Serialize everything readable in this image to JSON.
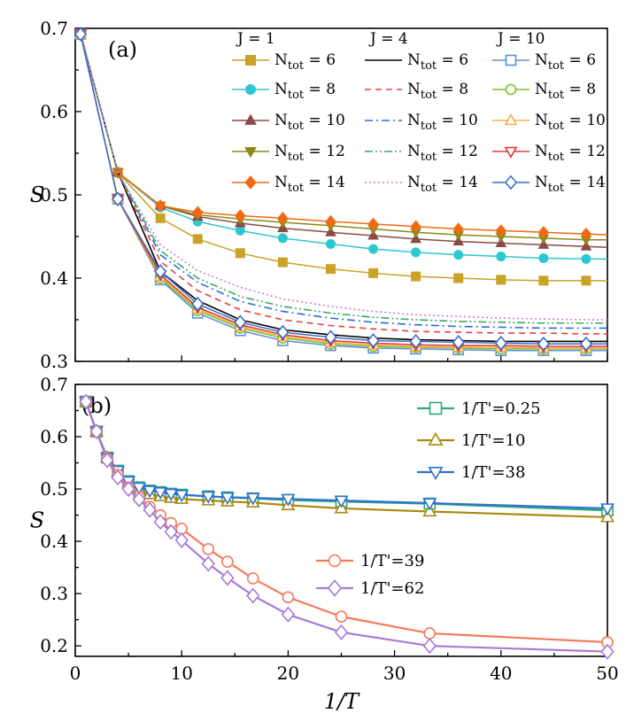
{
  "chart_data": [
    {
      "panel": "(a)",
      "type": "line",
      "x_values": [
        0.5,
        4,
        8,
        11.5,
        15.5,
        19.5,
        24,
        28,
        32,
        36,
        40,
        44,
        48,
        50
      ],
      "xlim": [
        0,
        50
      ],
      "ylim": [
        0.3,
        0.7
      ],
      "yticks": [
        "0.3",
        "0.4",
        "0.5",
        "0.6",
        "0.7"
      ],
      "ylabel": "S",
      "legend_groups": [
        {
          "title": "J = 1",
          "style": "filled-markers",
          "series": [
            {
              "label": "N_tot = 6",
              "color": "#c9a227",
              "marker": "square",
              "values": [
                0.693,
                0.527,
                0.472,
                0.447,
                0.43,
                0.419,
                0.411,
                0.406,
                0.402,
                0.4,
                0.398,
                0.397,
                0.397,
                0.397
              ]
            },
            {
              "label": "N_tot = 8",
              "color": "#2ec7cf",
              "marker": "circle",
              "values": [
                0.693,
                0.527,
                0.485,
                0.468,
                0.457,
                0.448,
                0.441,
                0.435,
                0.431,
                0.428,
                0.426,
                0.424,
                0.423,
                0.423
              ]
            },
            {
              "label": "N_tot = 10",
              "color": "#8b4b45",
              "marker": "triangle-up",
              "values": [
                0.693,
                0.527,
                0.487,
                0.474,
                0.466,
                0.46,
                0.455,
                0.451,
                0.447,
                0.444,
                0.442,
                0.44,
                0.438,
                0.437
              ]
            },
            {
              "label": "N_tot = 12",
              "color": "#8a8a1a",
              "marker": "triangle-down",
              "values": [
                0.693,
                0.527,
                0.487,
                0.476,
                0.471,
                0.467,
                0.463,
                0.459,
                0.455,
                0.452,
                0.45,
                0.448,
                0.446,
                0.446
              ]
            },
            {
              "label": "N_tot = 14",
              "color": "#f06a14",
              "marker": "diamond",
              "values": [
                0.693,
                0.527,
                0.487,
                0.479,
                0.475,
                0.472,
                0.468,
                0.465,
                0.462,
                0.459,
                0.457,
                0.455,
                0.453,
                0.452
              ]
            }
          ]
        },
        {
          "title": "J = 4",
          "style": "lines",
          "series": [
            {
              "label": "N_tot = 6",
              "color": "#000000",
              "dash": "solid",
              "values": [
                0.693,
                0.527,
                0.408,
                0.373,
                0.35,
                0.338,
                0.332,
                0.328,
                0.326,
                0.325,
                0.324,
                0.324,
                0.324,
                0.324
              ]
            },
            {
              "label": "N_tot = 8",
              "color": "#e8413a",
              "dash": "dash",
              "values": [
                0.693,
                0.527,
                0.42,
                0.385,
                0.362,
                0.35,
                0.343,
                0.339,
                0.336,
                0.335,
                0.334,
                0.334,
                0.333,
                0.333
              ]
            },
            {
              "label": "N_tot = 10",
              "color": "#2a6fdb",
              "dash": "dashdot",
              "values": [
                0.693,
                0.527,
                0.428,
                0.395,
                0.372,
                0.36,
                0.352,
                0.347,
                0.344,
                0.342,
                0.341,
                0.34,
                0.34,
                0.34
              ]
            },
            {
              "label": "N_tot = 12",
              "color": "#3aa860",
              "dash": "dashdotdot",
              "values": [
                0.693,
                0.527,
                0.433,
                0.4,
                0.378,
                0.366,
                0.358,
                0.353,
                0.35,
                0.348,
                0.347,
                0.346,
                0.346,
                0.346
              ]
            },
            {
              "label": "N_tot = 14",
              "color": "#c77ad9",
              "dash": "dot",
              "values": [
                0.693,
                0.527,
                0.44,
                0.409,
                0.389,
                0.375,
                0.366,
                0.36,
                0.356,
                0.354,
                0.352,
                0.351,
                0.35,
                0.35
              ]
            }
          ]
        },
        {
          "title": "J = 10",
          "style": "open-markers",
          "series": [
            {
              "label": "N_tot = 6",
              "color": "#5a8fd8",
              "marker": "square",
              "values": [
                0.693,
                0.495,
                0.398,
                0.358,
                0.337,
                0.325,
                0.319,
                0.316,
                0.315,
                0.314,
                0.313,
                0.313,
                0.313,
                0.313
              ]
            },
            {
              "label": "N_tot = 8",
              "color": "#7bbf2a",
              "marker": "circle",
              "values": [
                0.693,
                0.495,
                0.4,
                0.361,
                0.34,
                0.328,
                0.321,
                0.318,
                0.317,
                0.316,
                0.315,
                0.315,
                0.315,
                0.315
              ]
            },
            {
              "label": "N_tot = 10",
              "color": "#f5b050",
              "marker": "triangle-up",
              "values": [
                0.693,
                0.495,
                0.402,
                0.363,
                0.342,
                0.33,
                0.323,
                0.32,
                0.318,
                0.317,
                0.317,
                0.316,
                0.316,
                0.316
              ]
            },
            {
              "label": "N_tot = 12",
              "color": "#e03a2f",
              "marker": "triangle-down",
              "values": [
                0.693,
                0.495,
                0.404,
                0.365,
                0.344,
                0.332,
                0.325,
                0.322,
                0.32,
                0.319,
                0.319,
                0.318,
                0.318,
                0.318
              ]
            },
            {
              "label": "N_tot = 14",
              "color": "#3a6fc8",
              "marker": "diamond",
              "values": [
                0.693,
                0.495,
                0.408,
                0.369,
                0.347,
                0.335,
                0.329,
                0.325,
                0.324,
                0.323,
                0.322,
                0.321,
                0.321,
                0.321
              ]
            }
          ]
        }
      ]
    },
    {
      "panel": "(b)",
      "type": "line",
      "xlim": [
        0,
        50
      ],
      "ylim": [
        0.18,
        0.7
      ],
      "xticks": [
        "0",
        "10",
        "20",
        "30",
        "40",
        "50"
      ],
      "yticks": [
        "0.2",
        "0.3",
        "0.4",
        "0.5",
        "0.6",
        "0.7"
      ],
      "xlabel": "1/T",
      "ylabel": "S",
      "series": [
        {
          "label": "1/T'=0.25",
          "color": "#2aa877",
          "marker": "square",
          "x": [
            1,
            2,
            3,
            4,
            5,
            6,
            7,
            8,
            9,
            10,
            12.5,
            14.3,
            16.7,
            20,
            25,
            33.3,
            50
          ],
          "values": [
            0.667,
            0.61,
            0.56,
            0.535,
            0.515,
            0.503,
            0.497,
            0.494,
            0.491,
            0.489,
            0.486,
            0.484,
            0.482,
            0.479,
            0.476,
            0.472,
            0.459
          ]
        },
        {
          "label": "1/T'=10",
          "color": "#a88a10",
          "marker": "triangle-up",
          "x": [
            1,
            2,
            3,
            4,
            5,
            6,
            7,
            8,
            9,
            10,
            12.5,
            14.3,
            16.7,
            20,
            25,
            33.3,
            50
          ],
          "values": [
            0.667,
            0.61,
            0.56,
            0.532,
            0.512,
            0.498,
            0.49,
            0.486,
            0.483,
            0.481,
            0.478,
            0.476,
            0.474,
            0.469,
            0.463,
            0.457,
            0.446
          ]
        },
        {
          "label": "1/T'=38",
          "color": "#2f72d0",
          "marker": "triangle-down",
          "x": [
            1,
            2,
            3,
            4,
            5,
            6,
            7,
            8,
            9,
            10,
            12.5,
            14.3,
            16.7,
            20,
            25,
            33.3,
            50
          ],
          "values": [
            0.667,
            0.61,
            0.56,
            0.535,
            0.515,
            0.503,
            0.497,
            0.494,
            0.491,
            0.489,
            0.486,
            0.484,
            0.483,
            0.481,
            0.478,
            0.473,
            0.463
          ]
        },
        {
          "label": "1/T'=39",
          "color": "#f47a5a",
          "marker": "circle",
          "x": [
            1,
            2,
            3,
            4,
            5,
            6,
            7,
            8,
            9,
            10,
            12.5,
            14.3,
            16.7,
            20,
            25,
            33.3,
            50
          ],
          "values": [
            0.667,
            0.61,
            0.558,
            0.527,
            0.503,
            0.485,
            0.466,
            0.45,
            0.435,
            0.424,
            0.385,
            0.361,
            0.329,
            0.293,
            0.256,
            0.224,
            0.207
          ]
        },
        {
          "label": "1/T'=62",
          "color": "#a77ad8",
          "marker": "diamond",
          "x": [
            1,
            2,
            3,
            4,
            5,
            6,
            7,
            8,
            9,
            10,
            12.5,
            14.3,
            16.7,
            20,
            25,
            33.3,
            50
          ],
          "values": [
            0.667,
            0.61,
            0.555,
            0.522,
            0.5,
            0.48,
            0.46,
            0.437,
            0.418,
            0.402,
            0.357,
            0.33,
            0.296,
            0.26,
            0.226,
            0.2,
            0.189
          ]
        }
      ]
    }
  ]
}
